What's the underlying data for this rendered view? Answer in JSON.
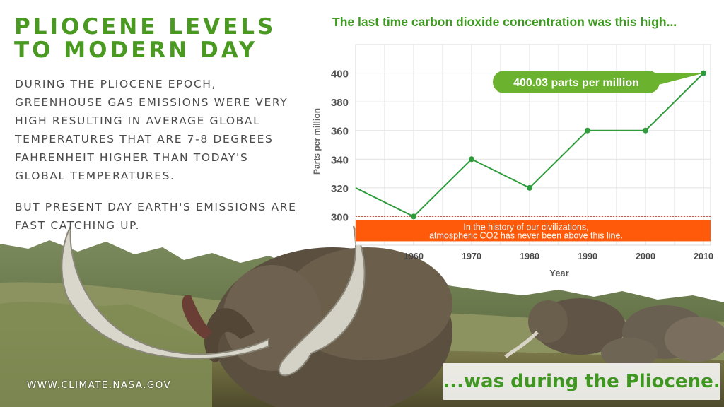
{
  "infographic": {
    "title_line1": "PLIOCENE LEVELS",
    "title_line2": "TO MODERN DAY",
    "paragraph_1": "During the Pliocene Epoch, greenhouse gas emissions were very high resulting in average global temperatures that are 7-8 degrees Fahrenheit higher than today's global temperatures.",
    "paragraph_2": "But present day Earth's emissions are fast catching up.",
    "source": "WWW.CLIMATE.NASA.GOV",
    "caption": "...was during the Pliocene.",
    "colors": {
      "title_green": "#4a9a21",
      "line_green": "#2e9b3c",
      "band_orange": "#fe5a0a",
      "callout_green": "#6bb32e"
    }
  },
  "chart_data": {
    "type": "line",
    "title": "The last time carbon dioxide concentration was this high...",
    "xlabel": "Year",
    "ylabel": "Parts per million",
    "x": [
      1950,
      1960,
      1970,
      1980,
      1990,
      2000,
      2010
    ],
    "y": [
      320,
      300,
      340,
      320,
      360,
      360,
      400
    ],
    "xticks": [
      "1960",
      "1970",
      "1980",
      "1990",
      "2000",
      "2010"
    ],
    "yticks": [
      "300",
      "320",
      "340",
      "360",
      "380",
      "400"
    ],
    "xlim": [
      1950,
      2010
    ],
    "ylim": [
      280,
      420
    ],
    "grid": true,
    "threshold": 300,
    "threshold_note": "In the history of our civilizations, atmospheric CO2 has never been above this line.",
    "callout": "400.03 parts per million"
  }
}
